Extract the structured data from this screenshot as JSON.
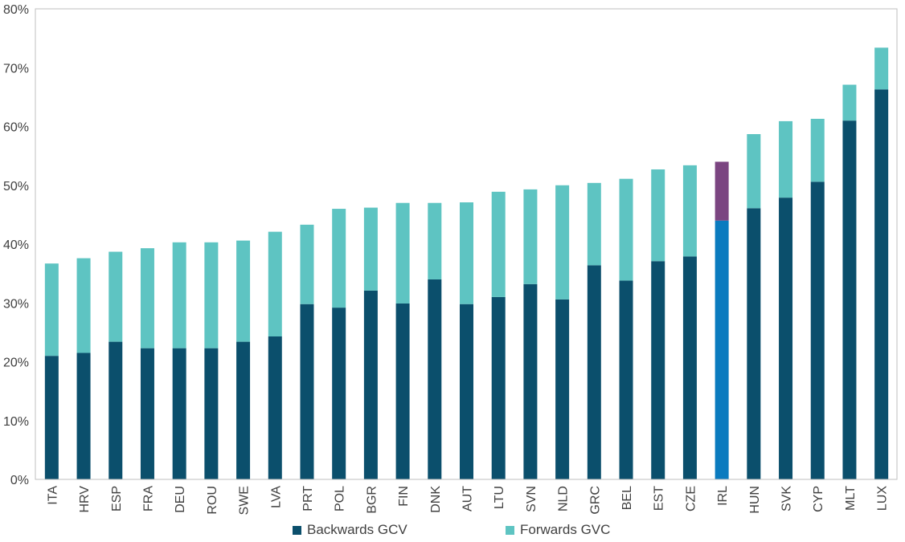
{
  "chart_data": {
    "type": "bar",
    "stacked": true,
    "title": "",
    "xlabel": "",
    "ylabel": "",
    "ylim": [
      0,
      80
    ],
    "yticks": [
      "0%",
      "10%",
      "20%",
      "30%",
      "40%",
      "50%",
      "60%",
      "70%",
      "80%"
    ],
    "grid": false,
    "legend_position": "bottom",
    "categories": [
      "ITA",
      "HRV",
      "ESP",
      "FRA",
      "DEU",
      "ROU",
      "SWE",
      "LVA",
      "PRT",
      "POL",
      "BGR",
      "FIN",
      "DNK",
      "AUT",
      "LTU",
      "SVN",
      "NLD",
      "GRC",
      "BEL",
      "EST",
      "CZE",
      "IRL",
      "HUN",
      "SVK",
      "CYP",
      "MLT",
      "LUX"
    ],
    "series": [
      {
        "name": "Backwards GCV",
        "color": "#0b4f6c",
        "values": [
          21.0,
          21.5,
          23.4,
          22.3,
          22.3,
          22.3,
          23.4,
          24.3,
          29.8,
          29.2,
          32.1,
          29.9,
          34.0,
          29.8,
          31.0,
          33.2,
          30.6,
          36.4,
          33.8,
          37.1,
          37.9,
          44.0,
          46.1,
          47.9,
          50.6,
          61.0,
          66.3
        ]
      },
      {
        "name": "Forwards GVC",
        "color": "#5ec4c2",
        "values": [
          15.7,
          16.1,
          15.3,
          17.0,
          18.0,
          18.0,
          17.2,
          17.8,
          13.5,
          16.8,
          14.1,
          17.1,
          13.0,
          17.3,
          17.9,
          16.1,
          19.4,
          14.0,
          17.3,
          15.6,
          15.5,
          10.0,
          12.6,
          13.0,
          10.7,
          6.1,
          7.1
        ]
      }
    ],
    "highlight": {
      "category": "IRL",
      "backwards_color": "#0a7bbf",
      "forwards_color": "#7b4581"
    }
  }
}
